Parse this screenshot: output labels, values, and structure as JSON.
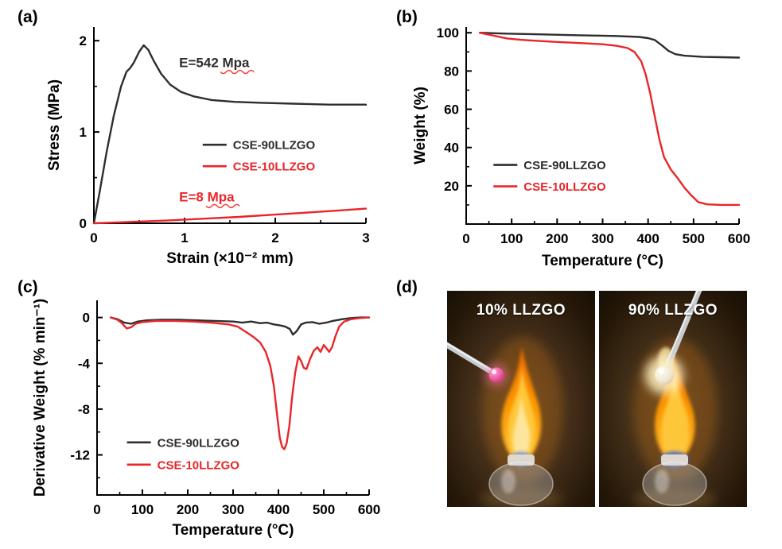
{
  "panels": {
    "a": "(a)",
    "b": "(b)",
    "c": "(c)",
    "d": "(d)"
  },
  "colors": {
    "series_dark": "#2e2e2e",
    "series_red": "#e8262a",
    "squiggle_red": "#ff2a2a"
  },
  "photos": [
    {
      "label": "10% LLZGO",
      "sample_color": "#e0458e"
    },
    {
      "label": "90% LLZGO",
      "sample_color": "#f3ecd9"
    }
  ],
  "chart_data": [
    {
      "id": "stress-strain",
      "type": "line",
      "title": "",
      "xlabel": "Strain (×10⁻² mm)",
      "ylabel": "Stress (MPa)",
      "xlim": [
        0,
        3
      ],
      "ylim": [
        0,
        2.15
      ],
      "xticks": [
        0,
        1,
        2,
        3
      ],
      "yticks": [
        0,
        1,
        2
      ],
      "xminor": 0.5,
      "yminor": 0.5,
      "series": [
        {
          "name": "CSE-90LLZGO",
          "color": "#2e2e2e",
          "x": [
            0,
            0.06,
            0.14,
            0.22,
            0.3,
            0.36,
            0.4,
            0.44,
            0.5,
            0.55,
            0.6,
            0.66,
            0.74,
            0.84,
            0.96,
            1.1,
            1.3,
            1.55,
            1.85,
            2.2,
            2.6,
            3.0
          ],
          "y": [
            0,
            0.32,
            0.78,
            1.18,
            1.5,
            1.66,
            1.7,
            1.76,
            1.88,
            1.95,
            1.9,
            1.78,
            1.64,
            1.52,
            1.44,
            1.39,
            1.35,
            1.33,
            1.32,
            1.31,
            1.3,
            1.3
          ]
        },
        {
          "name": "CSE-10LLZGO",
          "color": "#e8262a",
          "x": [
            0,
            0.4,
            0.8,
            1.2,
            1.6,
            2.0,
            2.4,
            2.7,
            3.0
          ],
          "y": [
            0,
            0.015,
            0.03,
            0.05,
            0.07,
            0.095,
            0.12,
            0.14,
            0.16
          ]
        }
      ],
      "legend": {
        "fx": 0.4,
        "fy": 0.6
      },
      "annotations": [
        {
          "text": "E=542 Mpa",
          "x": 0.94,
          "y": 1.71,
          "color": "#2e2e2e",
          "wavy_from": 52,
          "wavy_len": 42
        },
        {
          "text": "E=8 Mpa",
          "x": 0.94,
          "y": 0.24,
          "color": "#e8262a",
          "wavy_from": 34,
          "wavy_len": 42
        }
      ]
    },
    {
      "id": "tga-weight",
      "type": "line",
      "title": "",
      "xlabel": "Temperature (°C)",
      "ylabel": "Weight (%)",
      "xlim": [
        0,
        600
      ],
      "ylim": [
        0,
        103
      ],
      "xticks": [
        0,
        100,
        200,
        300,
        400,
        500,
        600
      ],
      "yticks": [
        20,
        40,
        60,
        80,
        100
      ],
      "xminor": 50,
      "yminor": 10,
      "series": [
        {
          "name": "CSE-90LLZGO",
          "color": "#2e2e2e",
          "x": [
            30,
            80,
            150,
            250,
            330,
            380,
            400,
            415,
            430,
            445,
            460,
            480,
            520,
            560,
            600
          ],
          "y": [
            100,
            99.6,
            99.2,
            98.7,
            98.3,
            97.8,
            97.2,
            96.2,
            93.5,
            90.5,
            88.8,
            88.0,
            87.4,
            87.2,
            87.0
          ]
        },
        {
          "name": "CSE-10LLZGO",
          "color": "#e8262a",
          "x": [
            30,
            60,
            90,
            120,
            160,
            200,
            250,
            300,
            330,
            355,
            370,
            385,
            395,
            405,
            415,
            425,
            435,
            450,
            465,
            480,
            495,
            510,
            530,
            560,
            600
          ],
          "y": [
            100,
            98.5,
            97.0,
            96.3,
            95.7,
            95.2,
            94.6,
            94.0,
            93.2,
            92.0,
            90.0,
            85.0,
            78.0,
            68.0,
            56.0,
            44.0,
            35.0,
            28.5,
            24.0,
            19.0,
            15.0,
            11.5,
            10.3,
            10.0,
            10.0
          ]
        }
      ],
      "legend": {
        "fx": 0.1,
        "fy": 0.7
      },
      "annotations": []
    },
    {
      "id": "dtg-derivative-weight",
      "type": "line",
      "title": "",
      "xlabel": "Temperature (°C)",
      "ylabel": "Derivative Weight (% min⁻¹)",
      "xlim": [
        0,
        600
      ],
      "ylim": [
        -15.5,
        1.5
      ],
      "xticks": [
        0,
        100,
        200,
        300,
        400,
        500,
        600
      ],
      "yticks": [
        0,
        -4,
        -8,
        -12
      ],
      "xminor": 50,
      "yminor": 2,
      "series": [
        {
          "name": "CSE-90LLZGO",
          "color": "#2e2e2e",
          "x": [
            30,
            45,
            60,
            75,
            90,
            110,
            140,
            180,
            220,
            260,
            300,
            320,
            340,
            360,
            375,
            390,
            405,
            415,
            425,
            432,
            440,
            450,
            460,
            475,
            490,
            505,
            520,
            540,
            560,
            580,
            600
          ],
          "y": [
            0,
            -0.15,
            -0.45,
            -0.55,
            -0.35,
            -0.25,
            -0.2,
            -0.2,
            -0.25,
            -0.3,
            -0.35,
            -0.45,
            -0.35,
            -0.5,
            -0.45,
            -0.6,
            -0.7,
            -0.8,
            -1.0,
            -1.5,
            -1.2,
            -0.6,
            -0.45,
            -0.4,
            -0.55,
            -0.45,
            -0.3,
            -0.15,
            -0.05,
            0,
            0
          ]
        },
        {
          "name": "CSE-10LLZGO",
          "color": "#e8262a",
          "x": [
            30,
            45,
            55,
            65,
            75,
            85,
            100,
            130,
            170,
            210,
            250,
            290,
            310,
            330,
            345,
            360,
            372,
            382,
            390,
            397,
            403,
            408,
            413,
            418,
            424,
            430,
            437,
            444,
            450,
            456,
            462,
            470,
            478,
            486,
            493,
            500,
            506,
            512,
            518,
            526,
            534,
            545,
            560,
            580,
            600
          ],
          "y": [
            0,
            -0.2,
            -0.5,
            -0.95,
            -0.85,
            -0.55,
            -0.4,
            -0.3,
            -0.3,
            -0.35,
            -0.45,
            -0.6,
            -0.8,
            -1.3,
            -1.7,
            -2.2,
            -3.0,
            -4.2,
            -6.0,
            -8.5,
            -10.5,
            -11.3,
            -11.5,
            -11.0,
            -9.5,
            -7.0,
            -4.8,
            -3.4,
            -3.8,
            -4.4,
            -4.5,
            -3.6,
            -2.9,
            -2.6,
            -3.0,
            -2.4,
            -2.7,
            -3.0,
            -2.6,
            -1.6,
            -0.8,
            -0.35,
            -0.15,
            -0.05,
            0
          ]
        }
      ],
      "legend": {
        "fx": 0.11,
        "fy": 0.73
      },
      "annotations": []
    }
  ]
}
